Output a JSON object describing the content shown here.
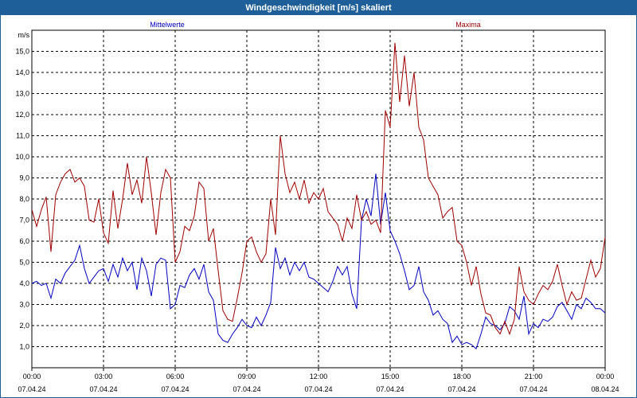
{
  "header": {
    "title": "Windgeschwindigkeit [m/s] skaliert"
  },
  "chart_data": {
    "type": "line",
    "title": "Windgeschwindigkeit [m/s] skaliert",
    "ylabel": "m/s",
    "ylim": [
      0,
      16
    ],
    "yticks": [
      "1,0",
      "2,0",
      "3,0",
      "4,0",
      "5,0",
      "6,0",
      "7,0",
      "8,0",
      "9,0",
      "10,0",
      "11,0",
      "12,0",
      "13,0",
      "14,0",
      "15,0"
    ],
    "xticks": [
      {
        "time": "00:00",
        "date": "07.04.24"
      },
      {
        "time": "03:00",
        "date": "07.04.24"
      },
      {
        "time": "06:00",
        "date": "07.04.24"
      },
      {
        "time": "09:00",
        "date": "07.04.24"
      },
      {
        "time": "12:00",
        "date": "07.04.24"
      },
      {
        "time": "15:00",
        "date": "07.04.24"
      },
      {
        "time": "18:00",
        "date": "07.04.24"
      },
      {
        "time": "21:00",
        "date": "07.04.24"
      },
      {
        "time": "00:00",
        "date": "08.04.24"
      }
    ],
    "xlim_hours": [
      0,
      24
    ],
    "grid": true,
    "series": [
      {
        "name": "Mittelwerte",
        "color": "#0000c0",
        "points": [
          [
            0.0,
            4.0
          ],
          [
            0.2,
            4.1
          ],
          [
            0.4,
            3.9
          ],
          [
            0.6,
            4.0
          ],
          [
            0.8,
            3.3
          ],
          [
            1.0,
            4.2
          ],
          [
            1.2,
            4.0
          ],
          [
            1.4,
            4.5
          ],
          [
            1.6,
            4.8
          ],
          [
            1.8,
            5.1
          ],
          [
            2.0,
            5.8
          ],
          [
            2.2,
            4.7
          ],
          [
            2.4,
            4.0
          ],
          [
            2.6,
            4.3
          ],
          [
            2.8,
            4.6
          ],
          [
            3.0,
            4.7
          ],
          [
            3.2,
            4.1
          ],
          [
            3.4,
            4.9
          ],
          [
            3.6,
            4.3
          ],
          [
            3.8,
            5.2
          ],
          [
            4.0,
            4.6
          ],
          [
            4.2,
            5.0
          ],
          [
            4.4,
            3.7
          ],
          [
            4.6,
            5.2
          ],
          [
            4.8,
            4.6
          ],
          [
            5.0,
            3.4
          ],
          [
            5.2,
            4.9
          ],
          [
            5.4,
            5.2
          ],
          [
            5.6,
            5.1
          ],
          [
            5.8,
            2.8
          ],
          [
            6.0,
            3.0
          ],
          [
            6.2,
            3.9
          ],
          [
            6.4,
            3.8
          ],
          [
            6.6,
            4.4
          ],
          [
            6.8,
            4.7
          ],
          [
            7.0,
            4.2
          ],
          [
            7.2,
            4.9
          ],
          [
            7.4,
            3.6
          ],
          [
            7.6,
            3.2
          ],
          [
            7.8,
            1.6
          ],
          [
            8.0,
            1.3
          ],
          [
            8.2,
            1.2
          ],
          [
            8.4,
            1.6
          ],
          [
            8.6,
            1.9
          ],
          [
            8.8,
            2.3
          ],
          [
            9.0,
            2.0
          ],
          [
            9.2,
            1.9
          ],
          [
            9.4,
            2.4
          ],
          [
            9.6,
            2.0
          ],
          [
            9.8,
            2.5
          ],
          [
            10.0,
            3.1
          ],
          [
            10.2,
            5.7
          ],
          [
            10.4,
            4.7
          ],
          [
            10.6,
            5.2
          ],
          [
            10.8,
            4.4
          ],
          [
            11.0,
            5.0
          ],
          [
            11.2,
            4.6
          ],
          [
            11.4,
            5.0
          ],
          [
            11.6,
            4.3
          ],
          [
            11.8,
            4.2
          ],
          [
            12.0,
            4.0
          ],
          [
            12.2,
            3.8
          ],
          [
            12.4,
            3.6
          ],
          [
            12.6,
            4.1
          ],
          [
            12.8,
            4.8
          ],
          [
            13.0,
            4.4
          ],
          [
            13.2,
            4.8
          ],
          [
            13.4,
            3.5
          ],
          [
            13.6,
            2.8
          ],
          [
            13.8,
            7.0
          ],
          [
            14.0,
            8.0
          ],
          [
            14.2,
            7.2
          ],
          [
            14.4,
            9.2
          ],
          [
            14.6,
            6.8
          ],
          [
            14.8,
            8.3
          ],
          [
            15.0,
            6.5
          ],
          [
            15.2,
            6.0
          ],
          [
            15.4,
            5.4
          ],
          [
            15.6,
            4.6
          ],
          [
            15.8,
            3.7
          ],
          [
            16.0,
            3.9
          ],
          [
            16.2,
            4.8
          ],
          [
            16.4,
            3.6
          ],
          [
            16.6,
            3.2
          ],
          [
            16.8,
            2.5
          ],
          [
            17.0,
            2.7
          ],
          [
            17.2,
            2.3
          ],
          [
            17.4,
            2.1
          ],
          [
            17.6,
            1.2
          ],
          [
            17.8,
            1.5
          ],
          [
            18.0,
            1.1
          ],
          [
            18.2,
            1.2
          ],
          [
            18.4,
            1.1
          ],
          [
            18.6,
            0.9
          ],
          [
            18.8,
            1.6
          ],
          [
            19.0,
            2.4
          ],
          [
            19.2,
            2.1
          ],
          [
            19.4,
            2.0
          ],
          [
            19.6,
            1.8
          ],
          [
            19.8,
            2.1
          ],
          [
            20.0,
            2.9
          ],
          [
            20.2,
            2.7
          ],
          [
            20.4,
            2.3
          ],
          [
            20.6,
            3.4
          ],
          [
            20.8,
            1.6
          ],
          [
            21.0,
            2.1
          ],
          [
            21.2,
            1.9
          ],
          [
            21.4,
            2.3
          ],
          [
            21.6,
            2.2
          ],
          [
            21.8,
            2.4
          ],
          [
            22.0,
            2.9
          ],
          [
            22.2,
            3.1
          ],
          [
            22.4,
            2.7
          ],
          [
            22.6,
            2.3
          ],
          [
            22.8,
            3.0
          ],
          [
            23.0,
            2.8
          ],
          [
            23.2,
            3.3
          ],
          [
            23.4,
            3.1
          ],
          [
            23.6,
            2.8
          ],
          [
            23.8,
            2.8
          ],
          [
            24.0,
            2.6
          ]
        ]
      },
      {
        "name": "Maxima",
        "color": "#a00000",
        "points": [
          [
            0.0,
            7.5
          ],
          [
            0.2,
            6.7
          ],
          [
            0.4,
            7.5
          ],
          [
            0.6,
            8.1
          ],
          [
            0.8,
            5.5
          ],
          [
            1.0,
            8.2
          ],
          [
            1.2,
            8.8
          ],
          [
            1.4,
            9.2
          ],
          [
            1.6,
            9.4
          ],
          [
            1.8,
            8.8
          ],
          [
            2.0,
            9.0
          ],
          [
            2.2,
            8.6
          ],
          [
            2.4,
            7.0
          ],
          [
            2.6,
            6.9
          ],
          [
            2.8,
            8.0
          ],
          [
            3.0,
            6.4
          ],
          [
            3.2,
            5.9
          ],
          [
            3.4,
            8.4
          ],
          [
            3.6,
            6.6
          ],
          [
            3.8,
            8.0
          ],
          [
            4.0,
            9.7
          ],
          [
            4.2,
            8.2
          ],
          [
            4.4,
            8.9
          ],
          [
            4.6,
            7.8
          ],
          [
            4.8,
            10.0
          ],
          [
            5.0,
            8.3
          ],
          [
            5.2,
            6.3
          ],
          [
            5.4,
            8.3
          ],
          [
            5.6,
            9.4
          ],
          [
            5.8,
            9.0
          ],
          [
            6.0,
            5.0
          ],
          [
            6.2,
            5.5
          ],
          [
            6.4,
            6.7
          ],
          [
            6.6,
            6.5
          ],
          [
            6.8,
            7.2
          ],
          [
            7.0,
            8.8
          ],
          [
            7.2,
            8.5
          ],
          [
            7.4,
            6.0
          ],
          [
            7.6,
            6.6
          ],
          [
            7.8,
            4.6
          ],
          [
            8.0,
            2.7
          ],
          [
            8.2,
            2.3
          ],
          [
            8.4,
            2.2
          ],
          [
            8.6,
            3.3
          ],
          [
            8.8,
            4.5
          ],
          [
            9.0,
            6.0
          ],
          [
            9.2,
            6.2
          ],
          [
            9.4,
            5.5
          ],
          [
            9.6,
            5.0
          ],
          [
            9.8,
            5.4
          ],
          [
            10.0,
            8.0
          ],
          [
            10.2,
            6.3
          ],
          [
            10.4,
            11.0
          ],
          [
            10.6,
            9.2
          ],
          [
            10.8,
            8.3
          ],
          [
            11.0,
            8.8
          ],
          [
            11.2,
            8.0
          ],
          [
            11.4,
            8.9
          ],
          [
            11.6,
            7.8
          ],
          [
            11.8,
            8.3
          ],
          [
            12.0,
            8.0
          ],
          [
            12.2,
            8.5
          ],
          [
            12.4,
            7.4
          ],
          [
            12.6,
            7.1
          ],
          [
            12.8,
            6.8
          ],
          [
            13.0,
            6.0
          ],
          [
            13.2,
            7.1
          ],
          [
            13.4,
            6.6
          ],
          [
            13.6,
            8.2
          ],
          [
            13.8,
            7.0
          ],
          [
            14.0,
            7.4
          ],
          [
            14.2,
            6.8
          ],
          [
            14.4,
            7.0
          ],
          [
            14.6,
            6.4
          ],
          [
            14.8,
            12.2
          ],
          [
            15.0,
            11.4
          ],
          [
            15.2,
            15.4
          ],
          [
            15.4,
            12.6
          ],
          [
            15.6,
            14.8
          ],
          [
            15.8,
            12.4
          ],
          [
            16.0,
            14.0
          ],
          [
            16.2,
            11.4
          ],
          [
            16.4,
            10.8
          ],
          [
            16.6,
            9.0
          ],
          [
            16.8,
            8.6
          ],
          [
            17.0,
            8.2
          ],
          [
            17.2,
            7.1
          ],
          [
            17.4,
            7.4
          ],
          [
            17.6,
            7.6
          ],
          [
            17.8,
            6.0
          ],
          [
            18.0,
            5.8
          ],
          [
            18.2,
            5.0
          ],
          [
            18.4,
            3.9
          ],
          [
            18.6,
            4.8
          ],
          [
            18.8,
            3.5
          ],
          [
            19.0,
            2.6
          ],
          [
            19.2,
            2.5
          ],
          [
            19.4,
            1.9
          ],
          [
            19.6,
            1.6
          ],
          [
            19.8,
            2.2
          ],
          [
            20.0,
            1.6
          ],
          [
            20.2,
            2.3
          ],
          [
            20.4,
            4.8
          ],
          [
            20.6,
            3.6
          ],
          [
            20.8,
            3.2
          ],
          [
            21.0,
            3.0
          ],
          [
            21.2,
            3.5
          ],
          [
            21.4,
            3.9
          ],
          [
            21.6,
            3.7
          ],
          [
            21.8,
            4.1
          ],
          [
            22.0,
            4.9
          ],
          [
            22.2,
            3.9
          ],
          [
            22.4,
            3.0
          ],
          [
            22.6,
            3.6
          ],
          [
            22.8,
            3.2
          ],
          [
            23.0,
            3.3
          ],
          [
            23.2,
            4.2
          ],
          [
            23.4,
            5.1
          ],
          [
            23.6,
            4.3
          ],
          [
            23.8,
            4.7
          ],
          [
            24.0,
            6.2
          ]
        ]
      }
    ]
  }
}
